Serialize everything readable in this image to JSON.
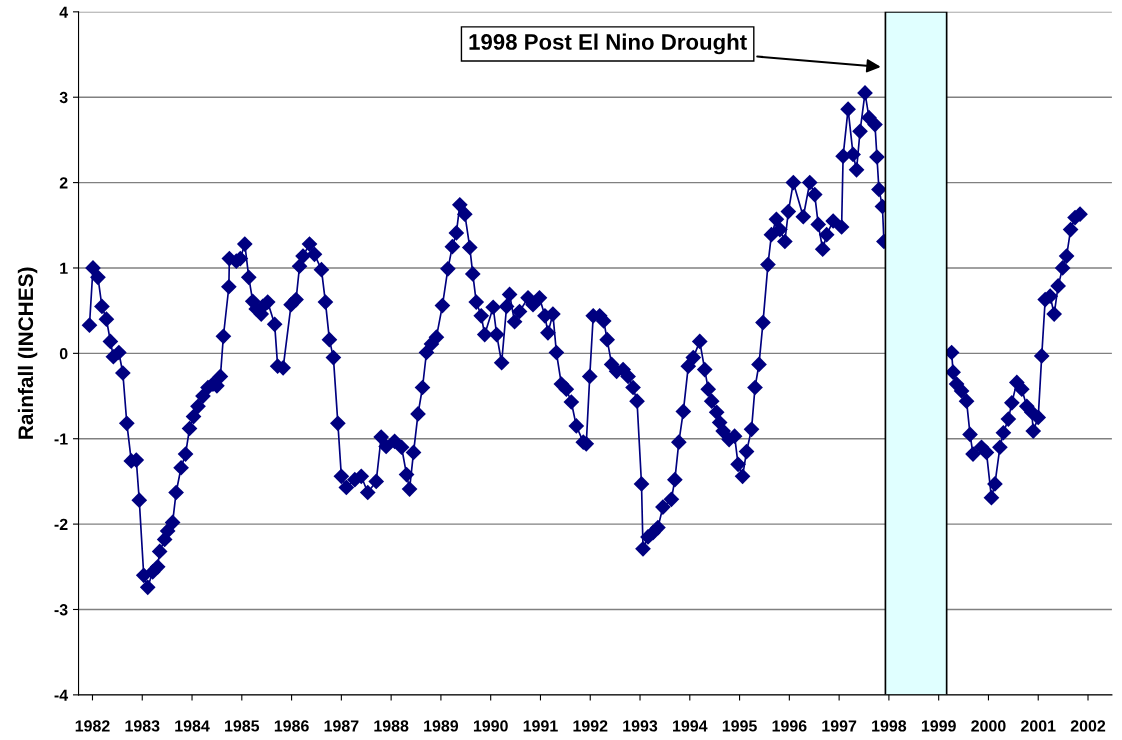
{
  "chart_data": {
    "type": "line",
    "ylabel": "Rainfall (INCHES)",
    "x": [
      1981.94,
      1982.01,
      1982.11,
      1982.19,
      1982.28,
      1982.36,
      1982.42,
      1982.53,
      1982.61,
      1982.69,
      1982.78,
      1982.88,
      1982.94,
      1983.03,
      1983.11,
      1983.21,
      1983.31,
      1983.35,
      1983.45,
      1983.51,
      1983.61,
      1983.68,
      1983.78,
      1983.87,
      1983.95,
      1984.03,
      1984.12,
      1984.22,
      1984.32,
      1984.42,
      1984.5,
      1984.57,
      1984.63,
      1984.74,
      1984.75,
      1984.89,
      1984.97,
      1985.06,
      1985.14,
      1985.22,
      1985.29,
      1985.39,
      1985.42,
      1985.52,
      1985.66,
      1985.72,
      1985.83,
      1985.99,
      1986.09,
      1986.16,
      1986.23,
      1986.36,
      1986.46,
      1986.6,
      1986.68,
      1986.76,
      1986.84,
      1986.93,
      1987.0,
      1987.1,
      1987.27,
      1987.4,
      1987.53,
      1987.7,
      1987.8,
      1987.9,
      1988.07,
      1988.21,
      1988.31,
      1988.37,
      1988.45,
      1988.54,
      1988.63,
      1988.71,
      1988.81,
      1988.91,
      1989.03,
      1989.14,
      1989.23,
      1989.31,
      1989.38,
      1989.48,
      1989.58,
      1989.64,
      1989.71,
      1989.81,
      1989.88,
      1990.05,
      1990.12,
      1990.22,
      1990.32,
      1990.38,
      1990.48,
      1990.58,
      1990.75,
      1990.85,
      1990.98,
      1991.09,
      1991.15,
      1991.25,
      1991.32,
      1991.42,
      1991.52,
      1991.62,
      1991.72,
      1991.86,
      1991.92,
      1991.99,
      1992.06,
      1992.19,
      1992.27,
      1992.34,
      1992.43,
      1992.53,
      1992.66,
      1992.76,
      1992.86,
      1992.94,
      1993.03,
      1993.06,
      1993.16,
      1993.26,
      1993.36,
      1993.46,
      1993.63,
      1993.7,
      1993.78,
      1993.87,
      1993.97,
      1994.07,
      1994.2,
      1994.3,
      1994.37,
      1994.44,
      1994.54,
      1994.6,
      1994.67,
      1994.79,
      1994.9,
      1994.97,
      1995.06,
      1995.14,
      1995.24,
      1995.31,
      1995.39,
      1995.47,
      1995.57,
      1995.64,
      1995.74,
      1995.81,
      1995.91,
      1995.98,
      1996.08,
      1996.28,
      1996.41,
      1996.51,
      1996.58,
      1996.67,
      1996.75,
      1996.88,
      1997.05,
      1997.08,
      1997.18,
      1997.28,
      1997.35,
      1997.42,
      1997.52,
      1997.6,
      1997.72,
      1997.76,
      1997.8,
      1997.87,
      1997.9,
      1998.5,
      1999.26,
      1999.29,
      1999.36,
      1999.46,
      1999.56,
      1999.63,
      1999.69,
      1999.86,
      1999.96,
      2000.06,
      2000.13,
      2000.23,
      2000.3,
      2000.4,
      2000.47,
      2000.57,
      2000.67,
      2000.77,
      2000.87,
      2000.9,
      2001.0,
      2001.07,
      2001.14,
      2001.24,
      2001.32,
      2001.4,
      2001.49,
      2001.57,
      2001.65,
      2001.74,
      2001.84
    ],
    "series": [
      {
        "color": "#000080",
        "values": [
          0.33,
          1.0,
          0.89,
          0.55,
          0.4,
          0.14,
          -0.04,
          0.01,
          -0.23,
          -0.82,
          -1.26,
          -1.25,
          -1.72,
          -2.6,
          -2.74,
          -2.56,
          -2.5,
          -2.32,
          -2.18,
          -2.08,
          -1.98,
          -1.63,
          -1.34,
          -1.18,
          -0.88,
          -0.74,
          -0.62,
          -0.5,
          -0.4,
          -0.36,
          -0.38,
          -0.27,
          0.2,
          0.78,
          1.11,
          1.08,
          1.11,
          1.28,
          0.89,
          0.61,
          0.52,
          0.46,
          0.55,
          0.6,
          0.34,
          -0.15,
          -0.17,
          0.57,
          0.63,
          1.02,
          1.14,
          1.28,
          1.16,
          0.98,
          0.6,
          0.16,
          -0.05,
          -0.82,
          -1.44,
          -1.57,
          -1.48,
          -1.44,
          -1.63,
          -1.5,
          -0.98,
          -1.09,
          -1.03,
          -1.1,
          -1.42,
          -1.59,
          -1.16,
          -0.71,
          -0.4,
          0.01,
          0.11,
          0.19,
          0.56,
          0.99,
          1.25,
          1.41,
          1.74,
          1.63,
          1.24,
          0.93,
          0.6,
          0.44,
          0.22,
          0.54,
          0.22,
          -0.11,
          0.55,
          0.69,
          0.37,
          0.49,
          0.65,
          0.57,
          0.65,
          0.44,
          0.24,
          0.46,
          0.01,
          -0.36,
          -0.42,
          -0.57,
          -0.85,
          -1.04,
          -1.06,
          -0.27,
          0.44,
          0.44,
          0.38,
          0.16,
          -0.13,
          -0.21,
          -0.19,
          -0.27,
          -0.4,
          -0.56,
          -1.53,
          -2.29,
          -2.15,
          -2.1,
          -2.04,
          -1.8,
          -1.71,
          -1.48,
          -1.04,
          -0.68,
          -0.15,
          -0.05,
          0.14,
          -0.19,
          -0.42,
          -0.56,
          -0.69,
          -0.81,
          -0.91,
          -1.01,
          -0.97,
          -1.3,
          -1.44,
          -1.15,
          -0.89,
          -0.4,
          -0.13,
          0.36,
          1.04,
          1.39,
          1.57,
          1.45,
          1.31,
          1.66,
          2.0,
          1.6,
          2.0,
          1.86,
          1.51,
          1.22,
          1.39,
          1.55,
          1.48,
          2.31,
          2.86,
          2.33,
          2.15,
          2.6,
          3.05,
          2.76,
          2.68,
          2.3,
          1.92,
          1.72,
          1.31,
          null,
          0.01,
          -0.22,
          -0.36,
          -0.44,
          -0.56,
          -0.95,
          -1.18,
          -1.1,
          -1.16,
          -1.69,
          -1.53,
          -1.1,
          -0.93,
          -0.77,
          -0.58,
          -0.34,
          -0.42,
          -0.62,
          -0.69,
          -0.91,
          -0.75,
          -0.03,
          0.63,
          0.67,
          0.46,
          0.79,
          1.0,
          1.14,
          1.45,
          1.59,
          1.63
        ]
      }
    ],
    "xlim": [
      1981.72,
      2002.48
    ],
    "xticks": [
      1982,
      1983,
      1984,
      1985,
      1986,
      1987,
      1988,
      1989,
      1990,
      1991,
      1992,
      1993,
      1994,
      1995,
      1996,
      1997,
      1998,
      1999,
      2000,
      2001,
      2002
    ],
    "ylim": [
      -4,
      4
    ],
    "yticks": [
      -4,
      -3,
      -2,
      -1,
      0,
      1,
      2,
      3,
      4
    ],
    "grid": "y",
    "marker": "diamond",
    "line_style": "solid",
    "bands": [
      {
        "axis": "x",
        "from": 1997.93,
        "to": 1999.16,
        "color": "#e0ffff"
      }
    ],
    "annotations": [
      "1998 Post El Nino Drought"
    ]
  }
}
